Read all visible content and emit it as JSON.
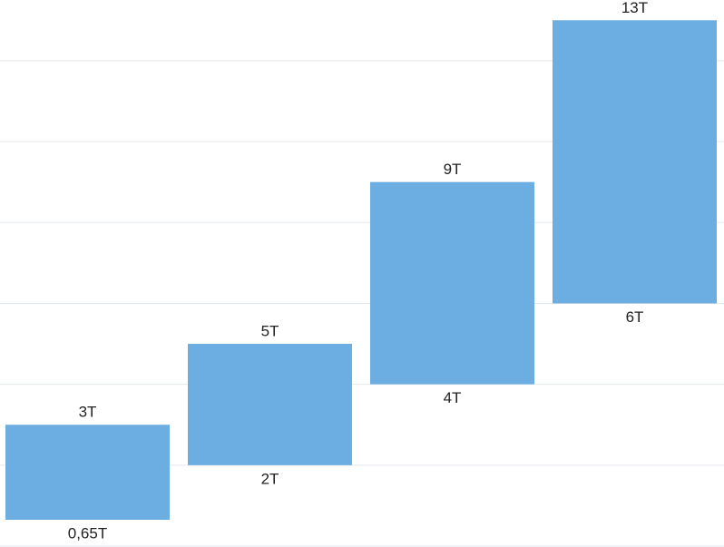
{
  "chart_data": {
    "type": "range-bar",
    "categories": [
      null,
      null,
      null,
      null
    ],
    "series": [
      {
        "color": "#6daee2",
        "values": [
          0.65,
          2,
          4,
          6
        ],
        "value_labels": [
          "0,65T",
          "2T",
          "4T",
          "6T"
        ]
      },
      {
        "color": "#6daee2",
        "values": [
          3,
          5,
          9,
          13
        ],
        "value_labels": [
          "3T",
          "5T",
          "9T",
          "13T"
        ]
      }
    ],
    "ylim": [
      0,
      13.5
    ],
    "yticks": [
      0,
      2,
      4,
      6,
      8,
      10,
      12
    ],
    "grid": true
  }
}
